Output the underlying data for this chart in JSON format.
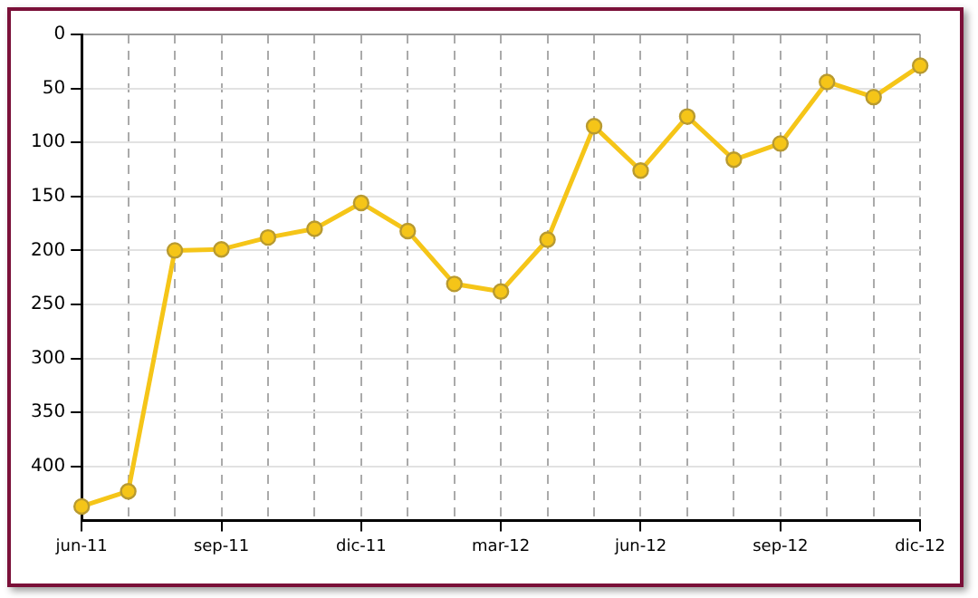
{
  "chart_data": {
    "type": "line",
    "categories": [
      "jun-11",
      null,
      null,
      "sep-11",
      null,
      null,
      "dic-11",
      null,
      null,
      "mar-12",
      null,
      null,
      "jun-12",
      null,
      null,
      "sep-12",
      null,
      null,
      "dic-12"
    ],
    "series": [
      {
        "color": "#f5c518",
        "values": [
          437,
          423,
          200,
          199,
          188,
          180,
          156,
          182,
          231,
          238,
          190,
          85,
          126,
          76,
          116,
          101,
          44,
          58,
          29
        ]
      }
    ],
    "ylim": [
      450,
      0
    ],
    "yticks": [
      0,
      50,
      100,
      150,
      200,
      250,
      300,
      350,
      400
    ],
    "grid": true,
    "legend": false,
    "marker": "circle",
    "line_style": "solid"
  }
}
